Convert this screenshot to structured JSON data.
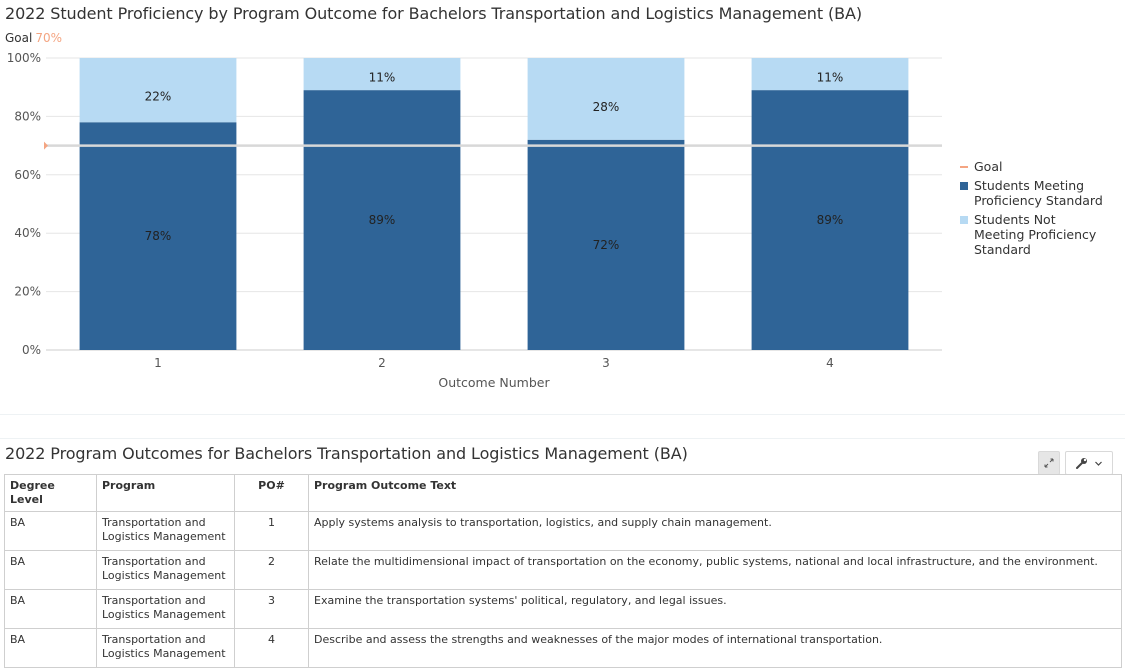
{
  "chart_data": {
    "type": "bar",
    "stacked": true,
    "title": "2022 Student Proficiency by Program Outcome for Bachelors Transportation and Logistics Management (BA)",
    "goal_label": "Goal",
    "goal_value_label": "70%",
    "goal": 70,
    "xlabel": "Outcome Number",
    "ylabel": "",
    "categories": [
      "1",
      "2",
      "3",
      "4"
    ],
    "y_ticks": [
      "0%",
      "20%",
      "40%",
      "60%",
      "80%",
      "100%"
    ],
    "ylim": [
      0,
      100
    ],
    "grid": true,
    "legend_position": "right",
    "series": [
      {
        "name": "Students Meeting Proficiency Standard",
        "values": [
          78,
          89,
          72,
          89
        ],
        "labels": [
          "78%",
          "89%",
          "72%",
          "89%"
        ],
        "color": "#2f6497"
      },
      {
        "name": "Students Not Meeting Proficiency Standard",
        "values": [
          22,
          11,
          28,
          11
        ],
        "labels": [
          "22%",
          "11%",
          "28%",
          "11%"
        ],
        "color": "#b7daf3"
      }
    ],
    "goal_color": "#f4a582"
  },
  "legend": {
    "goal": "Goal",
    "meeting": "Students Meeting Proficiency Standard",
    "not_meeting": "Students Not Meeting Proficiency Standard"
  },
  "table": {
    "title": "2022 Program Outcomes for Bachelors Transportation and Logistics Management (BA)",
    "headers": [
      "Degree Level",
      "Program",
      "PO#",
      "Program Outcome Text"
    ],
    "rows": [
      [
        "BA",
        "Transportation and Logistics Management",
        "1",
        "Apply systems analysis to transportation, logistics, and supply chain management."
      ],
      [
        "BA",
        "Transportation and Logistics Management",
        "2",
        "Relate the multidimensional impact of transportation on the economy, public systems, national and local infrastructure, and the environment."
      ],
      [
        "BA",
        "Transportation and Logistics Management",
        "3",
        "Examine the transportation systems' political, regulatory, and legal issues."
      ],
      [
        "BA",
        "Transportation and Logistics Management",
        "4",
        "Describe and assess the strengths and weaknesses of the major modes of international transportation."
      ]
    ]
  },
  "toolbar": {
    "expand_icon": "expand-arrows-icon",
    "wrench_icon": "wrench-icon",
    "chevron_icon": "chevron-down-icon"
  }
}
